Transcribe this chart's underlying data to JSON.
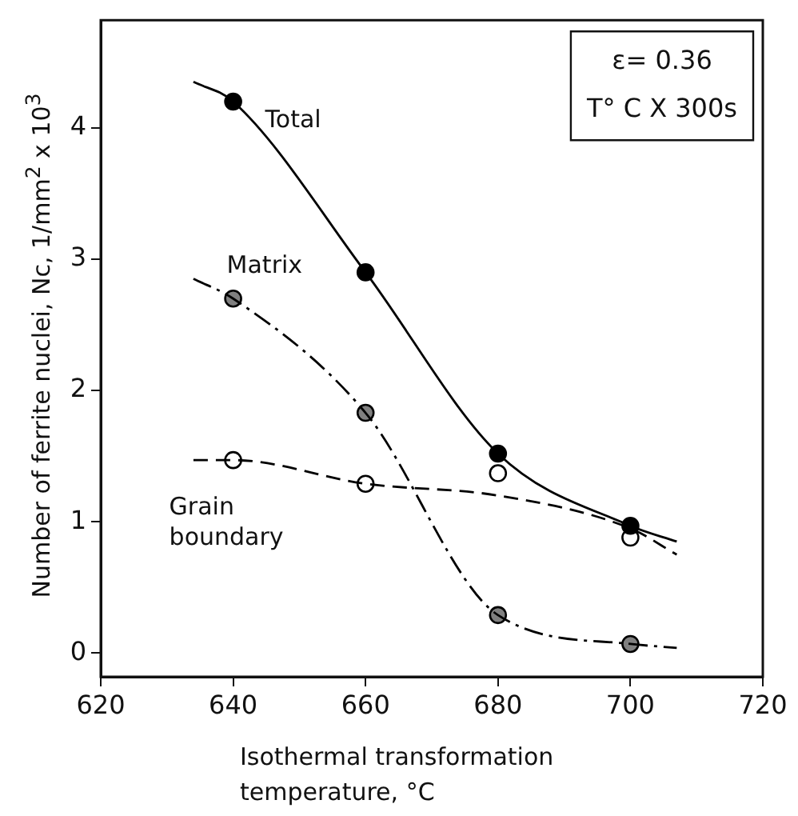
{
  "chart_data": {
    "type": "scatter",
    "xlabel": "Isothermal transformation temperature, °C",
    "ylabel": "Number of ferrite nuclei, Nc,  1/mm$^{2}$ x 10$^{3}$",
    "xlim": [
      620,
      720
    ],
    "xticks": [
      620,
      640,
      660,
      680,
      700,
      720
    ],
    "ylim": [
      -0.18,
      4.82
    ],
    "yticks": [
      0,
      1,
      2,
      3,
      4
    ],
    "grid": false,
    "series": [
      {
        "type": "line",
        "name": "Total",
        "marker": "none",
        "color": "#000000",
        "line_style": "solid",
        "x": [
          634,
          640,
          660,
          680,
          700,
          707
        ],
        "values": [
          4.35,
          4.2,
          2.9,
          1.52,
          0.97,
          0.85
        ]
      },
      {
        "type": "line",
        "name": "Matrix",
        "marker": "none",
        "color": "#000000",
        "line_style": "dashdot",
        "x": [
          634,
          640,
          660,
          680,
          700,
          707
        ],
        "values": [
          2.85,
          2.7,
          1.83,
          0.29,
          0.07,
          0.04
        ]
      },
      {
        "type": "line",
        "name": "Grain boundary",
        "marker": "none",
        "color": "#000000",
        "line_style": "dashed",
        "x": [
          634,
          640,
          660,
          680,
          700,
          707
        ],
        "values": [
          1.47,
          1.47,
          1.29,
          1.2,
          0.95,
          0.75
        ]
      },
      {
        "marker": "circle",
        "color": "#000000",
        "x": [
          640,
          660,
          680,
          700
        ],
        "values": [
          4.2,
          2.9,
          1.52,
          0.97
        ]
      },
      {
        "marker": "circle",
        "color": "#808080",
        "x": [
          640,
          660,
          680,
          700
        ],
        "values": [
          2.7,
          1.83,
          0.29,
          0.07
        ]
      },
      {
        "marker": "circle",
        "color": "#ffffff",
        "x": [
          640,
          660,
          680,
          700
        ],
        "values": [
          1.47,
          1.29,
          1.37,
          0.88
        ]
      }
    ],
    "annotations": [
      "ε= 0.36\nT° C X 300s"
    ]
  }
}
